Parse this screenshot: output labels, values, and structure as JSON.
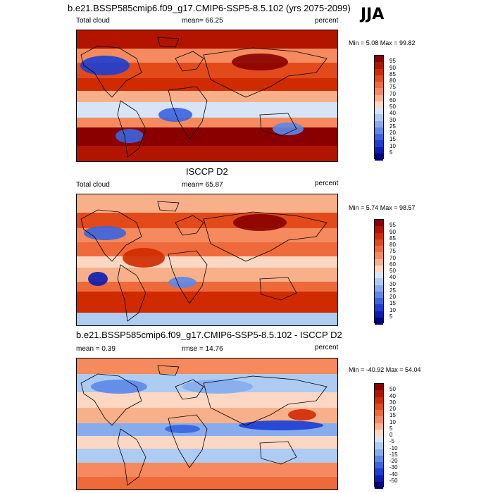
{
  "header": {
    "title": "b.e21.BSSP585cmip6.f09_g17.CMIP6-SSP5-8.5.102 (yrs 2075-2099)",
    "season": "JJA"
  },
  "panels": [
    {
      "title": "",
      "left_label": "Total cloud",
      "center_label": "mean=  66.25",
      "right_label": "percent",
      "minmax": "Min =   5.08 Max =  99.82",
      "colorbar_labels": [
        "95",
        "90",
        "85",
        "80",
        "75",
        "70",
        "60",
        "50",
        "40",
        "30",
        "25",
        "20",
        "15",
        "10",
        "5"
      ],
      "colors": [
        "#8a0000",
        "#b31400",
        "#d02a00",
        "#e24a1a",
        "#ee6a3a",
        "#f48a5e",
        "#f8b08a",
        "#fcd8c4",
        "#d6e4f6",
        "#aecbf2",
        "#86acee",
        "#5c88e8",
        "#3a64e0",
        "#1c3ed4",
        "#0a1cb4",
        "#00007a"
      ]
    },
    {
      "title": "ISCCP D2",
      "left_label": "Total cloud",
      "center_label": "mean=  65.87",
      "right_label": "percent",
      "minmax": "Min =   5.74 Max =  98.57",
      "colorbar_labels": [
        "95",
        "90",
        "85",
        "80",
        "75",
        "70",
        "60",
        "50",
        "40",
        "30",
        "25",
        "20",
        "15",
        "10",
        "5"
      ],
      "colors": [
        "#8a0000",
        "#b31400",
        "#d02a00",
        "#e24a1a",
        "#ee6a3a",
        "#f48a5e",
        "#f8b08a",
        "#fcd8c4",
        "#d6e4f6",
        "#aecbf2",
        "#86acee",
        "#5c88e8",
        "#3a64e0",
        "#1c3ed4",
        "#0a1cb4",
        "#00007a"
      ]
    },
    {
      "title": "b.e21.BSSP585cmip6.f09_g17.CMIP6-SSP5-8.5.102 - ISCCP D2",
      "left_label": "mean =   0.39",
      "center_label": "rmse =  14.76",
      "right_label": "percent",
      "minmax": "Min = -40.92 Max =  54.04",
      "colorbar_labels": [
        "50",
        "40",
        "30",
        "20",
        "15",
        "10",
        "5",
        "0",
        "-5",
        "-10",
        "-15",
        "-20",
        "-30",
        "-40",
        "-50"
      ],
      "colors": [
        "#8a0000",
        "#b31400",
        "#d02a00",
        "#e24a1a",
        "#ee6a3a",
        "#f48a5e",
        "#f8b08a",
        "#fcd8c4",
        "#d6e4f6",
        "#aecbf2",
        "#86acee",
        "#5c88e8",
        "#3a64e0",
        "#1c3ed4",
        "#0a1cb4",
        "#00007a"
      ]
    }
  ]
}
